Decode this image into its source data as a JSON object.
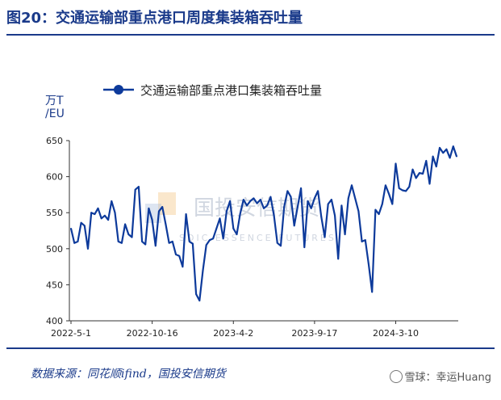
{
  "figure": {
    "title": "图20：交通运输部重点港口周度集装箱吞吐量",
    "source": "数据来源：同花顺ifind，国投安信期货",
    "watermark": "雪球：幸运Huang",
    "background_watermark": "国投安信期货",
    "background_watermark_en": "SDIC ESSENCE FUTURES"
  },
  "colors": {
    "accent": "#1a3a8a",
    "line": "#0d3a9b"
  },
  "chart_data": {
    "type": "line",
    "title": "",
    "ylabel": "万T/EU",
    "ylabel_lines": [
      "万T",
      "/EU"
    ],
    "legend_position": "top-center",
    "ylim": [
      400,
      650
    ],
    "yticks": [
      400,
      450,
      500,
      550,
      600,
      650
    ],
    "xtick_labels": [
      "2022-5-1",
      "2022-10-16",
      "2023-4-2",
      "2023-9-17",
      "2024-3-10"
    ],
    "grid": false,
    "series": [
      {
        "name": "交通运输部重点港口集装箱吞吐量",
        "values": [
          528,
          508,
          510,
          536,
          532,
          500,
          550,
          548,
          556,
          542,
          546,
          540,
          566,
          550,
          510,
          508,
          534,
          520,
          516,
          582,
          586,
          510,
          506,
          556,
          540,
          504,
          552,
          558,
          534,
          508,
          510,
          492,
          490,
          475,
          548,
          510,
          507,
          437,
          428,
          470,
          505,
          512,
          514,
          528,
          542,
          514,
          552,
          566,
          528,
          520,
          548,
          568,
          560,
          566,
          570,
          563,
          568,
          556,
          560,
          572,
          546,
          508,
          504,
          558,
          580,
          572,
          532,
          558,
          584,
          502,
          566,
          556,
          570,
          580,
          544,
          516,
          562,
          568,
          546,
          486,
          560,
          520,
          570,
          588,
          570,
          552,
          510,
          512,
          478,
          440,
          554,
          548,
          562,
          588,
          576,
          562,
          618,
          584,
          581,
          580,
          586,
          610,
          598,
          605,
          604,
          622,
          590,
          628,
          614,
          640,
          633,
          638,
          626,
          642,
          628
        ]
      }
    ]
  }
}
